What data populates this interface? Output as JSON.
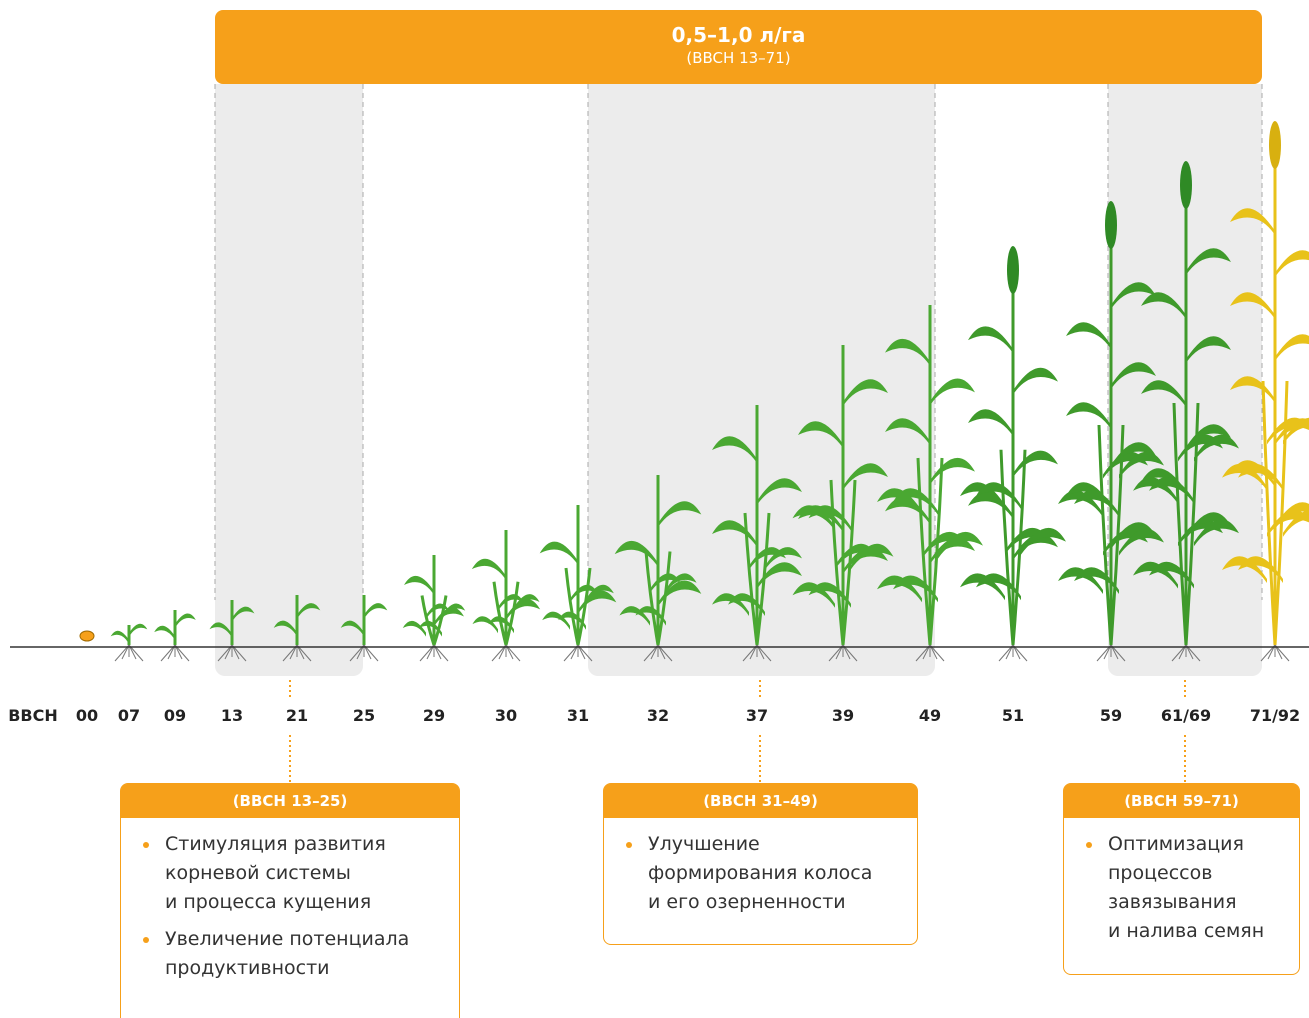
{
  "banner": {
    "rate": "0,5–1,0 л/га",
    "range": "(BBCH 13–71)"
  },
  "stages": {
    "label": "BBCH",
    "codes": [
      "00",
      "07",
      "09",
      "13",
      "21",
      "25",
      "29",
      "30",
      "31",
      "32",
      "37",
      "39",
      "49",
      "51",
      "59",
      "61/69",
      "71/92"
    ]
  },
  "boxes": [
    {
      "title": "(BBCH 13–25)",
      "items": [
        [
          "Стимуляция развития",
          "корневой системы",
          "и процесса кущения"
        ],
        [
          "Увеличение потенциала",
          "продуктивности"
        ]
      ]
    },
    {
      "title": "(BBCH 31–49)",
      "items": [
        [
          "Улучшение",
          "формирования колоса",
          "и его озерненности"
        ]
      ]
    },
    {
      "title": "(BBCH 59–71)",
      "items": [
        [
          "Оптимизация",
          "процессов",
          "завязывания",
          "и налива семян"
        ]
      ]
    }
  ]
}
